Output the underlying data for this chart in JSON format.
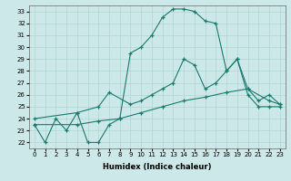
{
  "xlabel": "Humidex (Indice chaleur)",
  "bg_color": "#cce8e8",
  "grid_color": "#aad0d0",
  "line_color": "#1a7a6e",
  "xlim": [
    -0.5,
    23.5
  ],
  "ylim": [
    21.5,
    33.5
  ],
  "xticks": [
    0,
    1,
    2,
    3,
    4,
    5,
    6,
    7,
    8,
    9,
    10,
    11,
    12,
    13,
    14,
    15,
    16,
    17,
    18,
    19,
    20,
    21,
    22,
    23
  ],
  "yticks": [
    22,
    23,
    24,
    25,
    26,
    27,
    28,
    29,
    30,
    31,
    32,
    33
  ],
  "line1_x": [
    0,
    1,
    2,
    3,
    4,
    5,
    6,
    7,
    8,
    9,
    10,
    11,
    12,
    13,
    14,
    15,
    16,
    17,
    18,
    19,
    20,
    21,
    22,
    23
  ],
  "line1_y": [
    23.5,
    22.0,
    24.0,
    23.0,
    24.5,
    22.0,
    22.0,
    23.5,
    24.0,
    29.5,
    30.0,
    31.0,
    32.5,
    33.2,
    33.2,
    33.0,
    32.2,
    32.0,
    28.0,
    29.0,
    26.0,
    25.0,
    25.0,
    25.0
  ],
  "line2_x": [
    0,
    4,
    6,
    7,
    9,
    10,
    11,
    12,
    13,
    14,
    15,
    16,
    17,
    18,
    19,
    20,
    21,
    22,
    23
  ],
  "line2_y": [
    24.0,
    24.5,
    25.0,
    26.2,
    25.2,
    25.5,
    26.0,
    26.5,
    27.0,
    29.0,
    28.5,
    26.5,
    27.0,
    28.0,
    29.0,
    26.5,
    25.5,
    26.0,
    25.2
  ],
  "line3_x": [
    0,
    4,
    6,
    8,
    10,
    12,
    14,
    16,
    18,
    20,
    22,
    23
  ],
  "line3_y": [
    23.5,
    23.5,
    23.8,
    24.0,
    24.5,
    25.0,
    25.5,
    25.8,
    26.2,
    26.5,
    25.5,
    25.2
  ]
}
